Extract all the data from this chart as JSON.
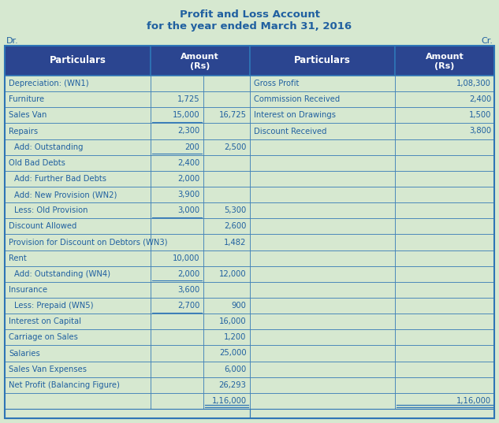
{
  "title_line1": "Profit and Loss Account",
  "title_line2": "for the year ended March 31, 2016",
  "dr_label": "Dr.",
  "cr_label": "Cr.",
  "header_bg": "#2B4590",
  "body_bg": "#D6E8D0",
  "border_color": "#2E75B6",
  "text_color": "#2060A0",
  "title_color": "#2060A0",
  "left_rows": [
    {
      "particular": "Depreciation: (WN1)",
      "sub": false,
      "col1": "",
      "col2": "",
      "ul_col1": false
    },
    {
      "particular": "Furniture",
      "sub": false,
      "col1": "1,725",
      "col2": "",
      "ul_col1": false
    },
    {
      "particular": "Sales Van",
      "sub": false,
      "col1": "15,000",
      "col2": "16,725",
      "ul_col1": true
    },
    {
      "particular": "Repairs",
      "sub": false,
      "col1": "2,300",
      "col2": "",
      "ul_col1": false
    },
    {
      "particular": " Add: Outstanding",
      "sub": true,
      "col1": "200",
      "col2": "2,500",
      "ul_col1": true
    },
    {
      "particular": "Old Bad Debts",
      "sub": false,
      "col1": "2,400",
      "col2": "",
      "ul_col1": false
    },
    {
      "particular": " Add: Further Bad Debts",
      "sub": true,
      "col1": "2,000",
      "col2": "",
      "ul_col1": false
    },
    {
      "particular": " Add: New Provision (WN2)",
      "sub": true,
      "col1": "3,900",
      "col2": "",
      "ul_col1": false
    },
    {
      "particular": " Less: Old Provision",
      "sub": true,
      "col1": "3,000",
      "col2": "5,300",
      "ul_col1": true
    },
    {
      "particular": "Discount Allowed",
      "sub": false,
      "col1": "",
      "col2": "2,600",
      "ul_col1": false
    },
    {
      "particular": "Provision for Discount on Debtors (WN3)",
      "sub": false,
      "col1": "",
      "col2": "1,482",
      "ul_col1": false
    },
    {
      "particular": "Rent",
      "sub": false,
      "col1": "10,000",
      "col2": "",
      "ul_col1": false
    },
    {
      "particular": " Add: Outstanding (WN4)",
      "sub": true,
      "col1": "2,000",
      "col2": "12,000",
      "ul_col1": true
    },
    {
      "particular": "Insurance",
      "sub": false,
      "col1": "3,600",
      "col2": "",
      "ul_col1": false
    },
    {
      "particular": " Less: Prepaid (WN5)",
      "sub": true,
      "col1": "2,700",
      "col2": "900",
      "ul_col1": true
    },
    {
      "particular": "Interest on Capital",
      "sub": false,
      "col1": "",
      "col2": "16,000",
      "ul_col1": false
    },
    {
      "particular": "Carriage on Sales",
      "sub": false,
      "col1": "",
      "col2": "1,200",
      "ul_col1": false
    },
    {
      "particular": "Salaries",
      "sub": false,
      "col1": "",
      "col2": "25,000",
      "ul_col1": false
    },
    {
      "particular": "Sales Van Expenses",
      "sub": false,
      "col1": "",
      "col2": "6,000",
      "ul_col1": false
    },
    {
      "particular": "Net Profit (Balancing Figure)",
      "sub": false,
      "col1": "",
      "col2": "26,293",
      "ul_col1": false
    },
    {
      "particular": "",
      "sub": false,
      "col1": "",
      "col2": "1,16,000",
      "ul_col1": false
    }
  ],
  "right_rows": [
    {
      "particular": "Gross Profit",
      "col2": "1,08,300"
    },
    {
      "particular": "Commission Received",
      "col2": "2,400"
    },
    {
      "particular": "Interest on Drawings",
      "col2": "1,500"
    },
    {
      "particular": "Discount Received",
      "col2": "3,800"
    },
    {
      "particular": "",
      "col2": ""
    },
    {
      "particular": "",
      "col2": ""
    },
    {
      "particular": "",
      "col2": ""
    },
    {
      "particular": "",
      "col2": ""
    },
    {
      "particular": "",
      "col2": ""
    },
    {
      "particular": "",
      "col2": ""
    },
    {
      "particular": "",
      "col2": ""
    },
    {
      "particular": "",
      "col2": ""
    },
    {
      "particular": "",
      "col2": ""
    },
    {
      "particular": "",
      "col2": ""
    },
    {
      "particular": "",
      "col2": ""
    },
    {
      "particular": "",
      "col2": ""
    },
    {
      "particular": "",
      "col2": ""
    },
    {
      "particular": "",
      "col2": ""
    },
    {
      "particular": "",
      "col2": ""
    },
    {
      "particular": "",
      "col2": ""
    },
    {
      "particular": "",
      "col2": "1,16,000"
    }
  ],
  "figsize": [
    6.33,
    5.37
  ],
  "dpi": 100
}
